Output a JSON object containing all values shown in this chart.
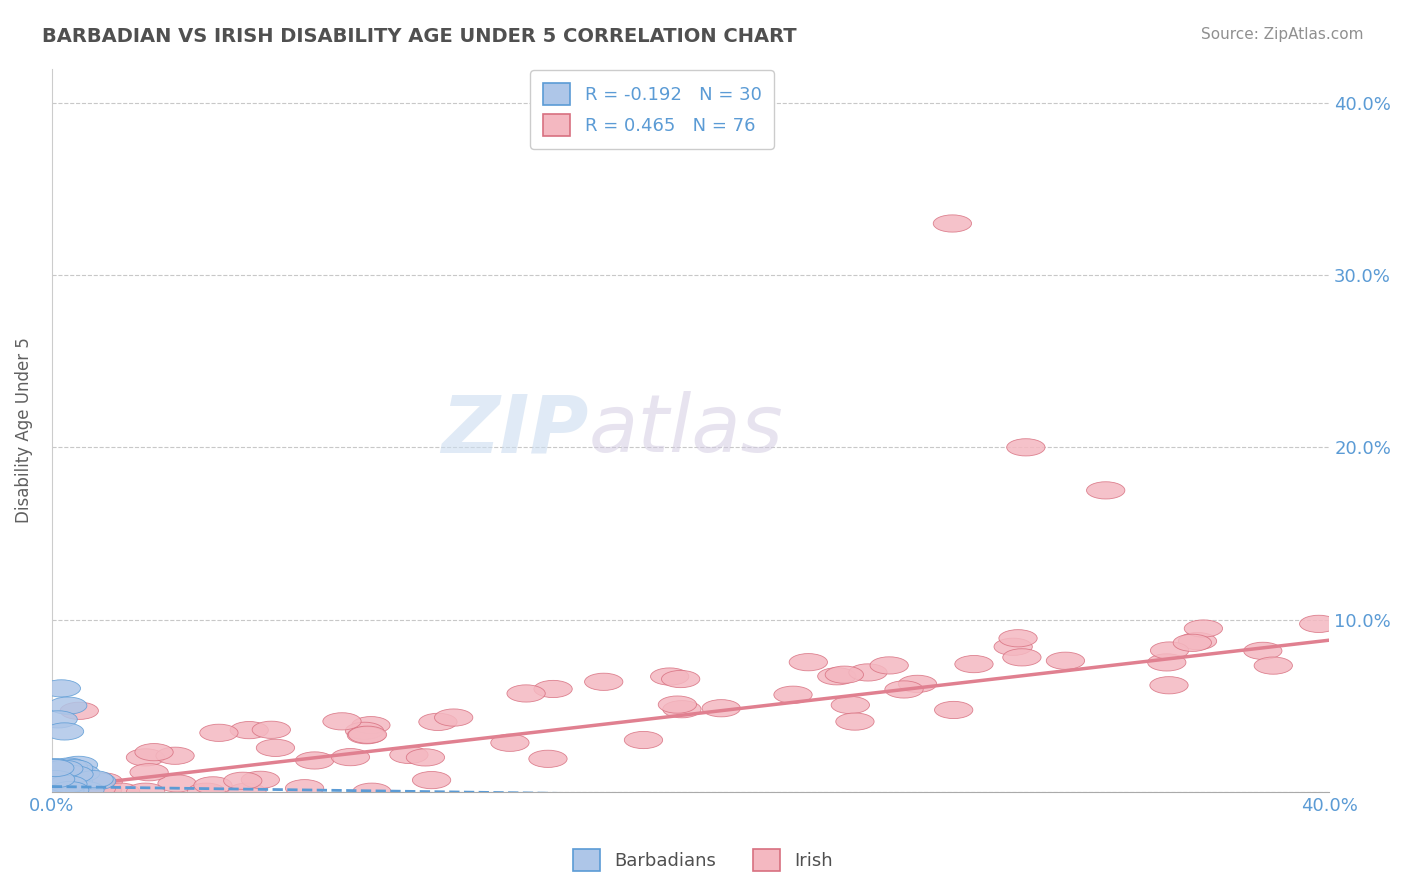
{
  "title": "BARBADIAN VS IRISH DISABILITY AGE UNDER 5 CORRELATION CHART",
  "source": "Source: ZipAtlas.com",
  "ylabel_label": "Disability Age Under 5",
  "xlim": [
    0.0,
    0.4
  ],
  "ylim": [
    0.0,
    0.42
  ],
  "x_ticks": [
    0.0,
    0.4
  ],
  "x_tick_labels": [
    "0.0%",
    "40.0%"
  ],
  "y_ticks": [
    0.0,
    0.1,
    0.2,
    0.3,
    0.4
  ],
  "y_tick_labels": [
    "",
    "10.0%",
    "20.0%",
    "30.0%",
    "40.0%"
  ],
  "barbadian_color": "#aec6e8",
  "barbadian_edge": "#5b9bd5",
  "irish_color": "#f4b8c1",
  "irish_edge": "#d87080",
  "trend_barbadian_color": "#5b9bd5",
  "trend_irish_color": "#e08090",
  "R_barbadian": -0.192,
  "N_barbadian": 30,
  "R_irish": 0.465,
  "N_irish": 76,
  "background_color": "#ffffff",
  "grid_color": "#c8c8c8",
  "title_color": "#505050",
  "source_color": "#909090",
  "axis_label_color": "#5b9bd5",
  "legend_label_barbadians": "Barbadians",
  "legend_label_irish": "Irish",
  "slope_irish": 0.215,
  "intercept_irish": 0.002,
  "slope_barb": -0.025,
  "intercept_barb": 0.003
}
